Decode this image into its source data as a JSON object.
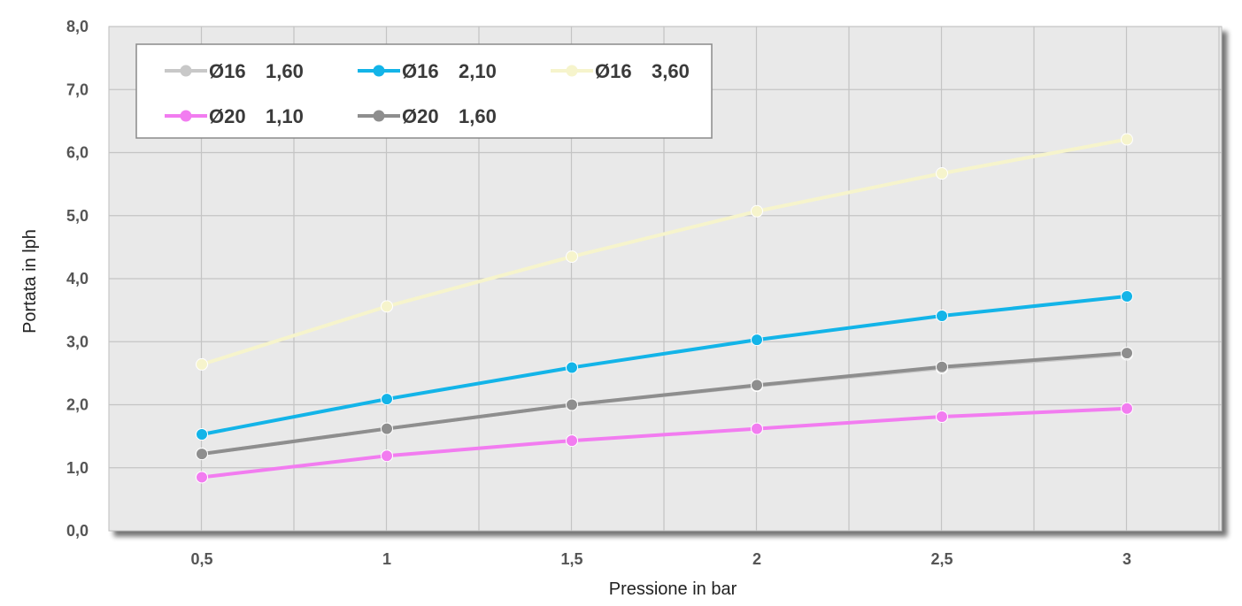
{
  "chart_data": {
    "type": "line",
    "title": "",
    "xlabel": "Pressione in bar",
    "ylabel": "Portata in lph",
    "x": [
      0.5,
      1,
      1.5,
      2,
      2.5,
      3
    ],
    "x_tick_labels": [
      "0,5",
      "1",
      "1,5",
      "2",
      "2,5",
      "3"
    ],
    "y_tick_labels": [
      "0,0",
      "1,0",
      "2,0",
      "3,0",
      "4,0",
      "5,0",
      "6,0",
      "7,0",
      "8,0"
    ],
    "ylim": [
      0,
      8
    ],
    "grid": true,
    "legend_position": "top-left",
    "series": [
      {
        "name": "Ø16",
        "name_value": "1,60",
        "color": "#c8c8c8",
        "values": [
          1.22,
          1.62,
          2.0,
          2.3,
          2.58,
          2.8
        ]
      },
      {
        "name": "Ø16",
        "name_value": "2,10",
        "color": "#13b4e8",
        "values": [
          1.53,
          2.09,
          2.59,
          3.03,
          3.41,
          3.72
        ]
      },
      {
        "name": "Ø16",
        "name_value": "3,60",
        "color": "#f6f4cc",
        "values": [
          2.64,
          3.56,
          4.35,
          5.07,
          5.67,
          6.21
        ]
      },
      {
        "name": "Ø20",
        "name_value": "1,10",
        "color": "#f27cf0",
        "values": [
          0.85,
          1.19,
          1.43,
          1.62,
          1.81,
          1.94
        ]
      },
      {
        "name": "Ø20",
        "name_value": "1,60",
        "color": "#8e8e8e",
        "values": [
          1.22,
          1.62,
          2.0,
          2.31,
          2.6,
          2.82
        ]
      }
    ]
  }
}
